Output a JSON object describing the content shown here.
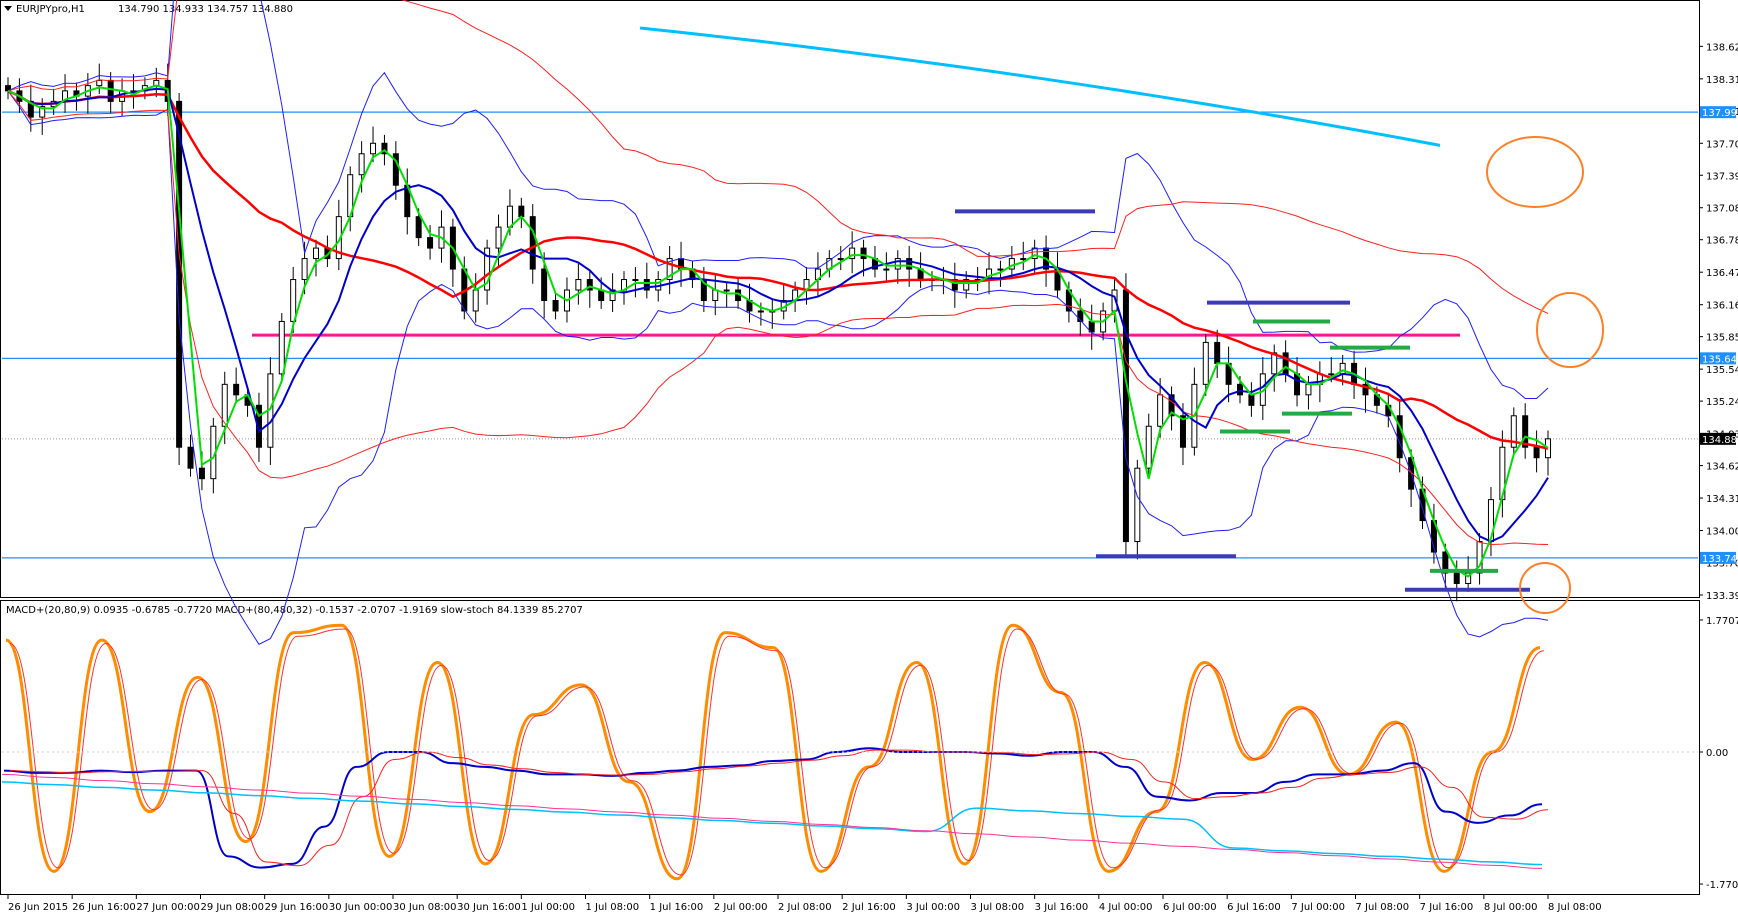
{
  "window": {
    "title": "EURJPYpro,H1",
    "ohlc": "134.790 134.933 134.757 134.880"
  },
  "indicator_header": "MACD+(20,80,9) 0.0935 -0.6785 -0.7720   MACD+(80,480,32) -0.1537 -2.0707 -1.9169   slow-stoch 84.1339 85.2707",
  "chart_data": [
    {
      "type": "candlestick",
      "title": "EURJPYpro,H1",
      "ylim": [
        133.39,
        138.8
      ],
      "y_ticks": [
        "138.625",
        "138.315",
        "138.010",
        "137.700",
        "137.395",
        "137.085",
        "136.780",
        "136.470",
        "136.160",
        "135.855",
        "135.545",
        "135.240",
        "134.930",
        "134.625",
        "134.315",
        "134.005",
        "133.700",
        "133.390"
      ],
      "x_ticks": [
        "26 Jun 2015",
        "26 Jun 16:00",
        "27 Jun 00:00",
        "29 Jun 08:00",
        "29 Jun 16:00",
        "30 Jun 00:00",
        "30 Jun 08:00",
        "30 Jun 16:00",
        "1 Jul 00:00",
        "1 Jul 08:00",
        "1 Jul 16:00",
        "2 Jul 00:00",
        "2 Jul 08:00",
        "2 Jul 16:00",
        "3 Jul 00:00",
        "3 Jul 08:00",
        "3 Jul 16:00",
        "4 Jul 00:00",
        "6 Jul 00:00",
        "6 Jul 16:00",
        "7 Jul 00:00",
        "7 Jul 08:00",
        "7 Jul 16:00",
        "8 Jul 00:00",
        "8 Jul 08:00"
      ],
      "price_labels": [
        {
          "value": "137.997",
          "color": "#1e90ff"
        },
        {
          "value": "135.648",
          "color": "#1e90ff"
        },
        {
          "value": "134.880",
          "color": "#000000"
        },
        {
          "value": "133.744",
          "color": "#1e90ff"
        }
      ],
      "horizontal_levels": [
        137.997,
        135.648,
        133.744
      ],
      "current_price": 134.88,
      "magenta_level": 135.87,
      "close_series": [
        138.2,
        138.1,
        137.95,
        138.05,
        138.1,
        138.2,
        138.15,
        138.25,
        138.3,
        138.1,
        138.2,
        138.2,
        138.25,
        138.3,
        138.1,
        134.8,
        134.6,
        134.5,
        135.0,
        135.4,
        135.3,
        135.2,
        134.8,
        135.5,
        136.0,
        136.4,
        136.6,
        136.7,
        136.6,
        137.0,
        137.4,
        137.6,
        137.7,
        137.6,
        137.3,
        137.0,
        136.8,
        136.7,
        136.9,
        136.5,
        136.1,
        136.3,
        136.7,
        136.9,
        137.1,
        137.0,
        136.5,
        136.2,
        136.1,
        136.3,
        136.4,
        136.3,
        136.2,
        136.3,
        136.4,
        136.4,
        136.3,
        136.4,
        136.6,
        136.5,
        136.4,
        136.2,
        136.3,
        136.3,
        136.2,
        136.1,
        136.1,
        136.1,
        136.2,
        136.3,
        136.4,
        136.5,
        136.6,
        136.6,
        136.7,
        136.6,
        136.5,
        136.5,
        136.6,
        136.5,
        136.4,
        136.4,
        136.4,
        136.3,
        136.4,
        136.4,
        136.5,
        136.5,
        136.6,
        136.6,
        136.7,
        136.5,
        136.3,
        136.1,
        136.0,
        135.9,
        136.1,
        136.3,
        133.9,
        134.6,
        135.0,
        135.3,
        135.1,
        134.8,
        135.4,
        135.8,
        135.6,
        135.4,
        135.3,
        135.2,
        135.5,
        135.7,
        135.5,
        135.3,
        135.4,
        135.5,
        135.5,
        135.6,
        135.4,
        135.3,
        135.2,
        135.1,
        134.7,
        134.4,
        134.1,
        133.8,
        133.6,
        133.5,
        133.6,
        133.9,
        134.3,
        134.8,
        135.1,
        134.8,
        134.7,
        134.88
      ],
      "series": [
        {
          "name": "",
          "color": "#ff0000"
        },
        {
          "name": "",
          "color": "#0000cd"
        },
        {
          "name": "",
          "color": "#00e000"
        },
        {
          "name": "",
          "color": "#00bfff"
        }
      ]
    },
    {
      "type": "line",
      "title": "",
      "ylim": [
        -1.77,
        1.77
      ],
      "y_ticks": [
        "1.7707",
        "0.00",
        "-1.7707"
      ],
      "macd_fast": [
        -0.25,
        -0.28,
        -0.28,
        -0.25,
        -0.27,
        -0.25,
        -0.25,
        -1.4,
        -1.55,
        -1.5,
        -1.0,
        -0.2,
        0.0,
        0.0,
        -0.15,
        -0.2,
        -0.25,
        -0.3,
        -0.3,
        -0.32,
        -0.28,
        -0.25,
        -0.2,
        -0.18,
        -0.12,
        -0.1,
        0.0,
        0.05,
        0.0,
        0.0,
        0.0,
        -0.02,
        -0.05,
        0.0,
        0.0,
        -0.2,
        -0.6,
        -0.65,
        -0.55,
        -0.55,
        -0.4,
        -0.3,
        -0.3,
        -0.25,
        -0.15,
        -0.8,
        -0.95,
        -0.85,
        -0.7
      ],
      "stoch": [
        1.5,
        -1.6,
        1.5,
        -0.8,
        1.0,
        -1.2,
        1.6,
        1.7,
        -1.4,
        1.2,
        -1.5,
        0.5,
        0.9,
        -0.4,
        -1.7,
        1.6,
        1.4,
        -1.6,
        -0.2,
        1.2,
        -1.5,
        1.7,
        0.8,
        -1.6,
        -0.8,
        1.2,
        -0.1,
        0.6,
        -0.3,
        0.4,
        -1.6,
        0.0,
        1.4
      ]
    }
  ]
}
